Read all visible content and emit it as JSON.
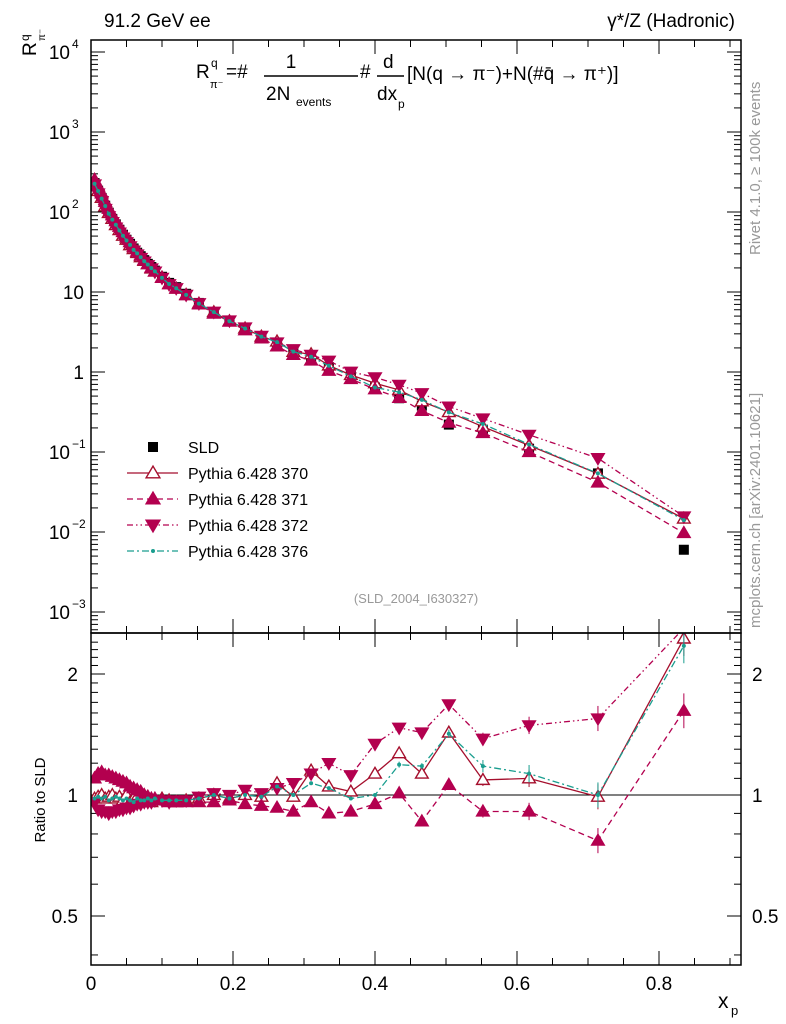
{
  "chart_data": {
    "type": "scatter",
    "title_left": "91.2 GeV ee",
    "title_right": "γ*/Z (Hadronic)",
    "ylabel_main": "R",
    "ylabel_sup": "q",
    "ylabel_sub": "π⁻",
    "formula": "R^q_π⁻=#1/(2N_events)#d/dx_p[N(q → π⁻)+N(#q̄ → π⁺)]",
    "formula_parts": {
      "lhs": "R",
      "sup": "q",
      "sub": "π⁻",
      "eq": "=#",
      "num1": "1",
      "den1": "2N",
      "den1_sub": "events",
      "hash": "#",
      "num2": "d",
      "den2": "dx",
      "den2_sub": "p",
      "bracket": "[N(q → π⁻)+N(#q̄ → π⁺)]"
    },
    "xlabel": "x",
    "xlabel_sub": "p",
    "ratio_ylabel": "Ratio to SLD",
    "analysis": "(SLD_2004_I630327)",
    "side_text_1": "Rivet 4.1.0, ≥ 100k events",
    "side_text_2": "mcplots.cern.ch [arXiv:2401.10621]",
    "xlim": [
      0,
      0.915
    ],
    "ylim_log10": [
      -3.26,
      4.15
    ],
    "ratio_ylim": [
      0.377,
      2.53
    ],
    "x_ticks": [
      "0",
      "0.2",
      "0.4",
      "0.6",
      "0.8"
    ],
    "x_tick_values": [
      0,
      0.2,
      0.4,
      0.6,
      0.8
    ],
    "y_ticks": [
      {
        "b": "10",
        "e": "−3",
        "v": -3
      },
      {
        "b": "10",
        "e": "−2",
        "v": -2
      },
      {
        "b": "10",
        "e": "−1",
        "v": -1
      },
      {
        "b": "1",
        "e": "",
        "v": 0
      },
      {
        "b": "10",
        "e": "",
        "v": 1
      },
      {
        "b": "10",
        "e": "2",
        "v": 2
      },
      {
        "b": "10",
        "e": "3",
        "v": 3
      },
      {
        "b": "10",
        "e": "4",
        "v": 4
      }
    ],
    "ratio_ticks": [
      {
        "l": "0.5",
        "v": 0.5
      },
      {
        "l": "1",
        "v": 1
      },
      {
        "l": "2",
        "v": 2
      }
    ],
    "x": [
      0.005,
      0.01,
      0.015,
      0.02,
      0.025,
      0.03,
      0.035,
      0.04,
      0.045,
      0.05,
      0.055,
      0.06,
      0.065,
      0.07,
      0.075,
      0.08,
      0.085,
      0.09,
      0.1,
      0.11,
      0.12,
      0.134,
      0.152,
      0.173,
      0.195,
      0.217,
      0.24,
      0.262,
      0.285,
      0.31,
      0.335,
      0.366,
      0.4,
      0.434,
      0.466,
      0.504,
      0.552,
      0.617,
      0.714,
      0.835
    ],
    "data": {
      "name": "SLD",
      "values": [
        230,
        185,
        150,
        120,
        98,
        82,
        70,
        60,
        52,
        45,
        40,
        35,
        31,
        28,
        25,
        22.5,
        20.5,
        18.5,
        15.5,
        13,
        11.5,
        9.5,
        7.3,
        5.6,
        4.4,
        3.5,
        2.8,
        2.25,
        1.8,
        1.45,
        1.15,
        0.9,
        0.64,
        0.47,
        0.38,
        0.22,
        0.19,
        0.11,
        0.054,
        0.006
      ]
    },
    "series": [
      {
        "name": "Pythia 6.428 370",
        "color": "#a50f2d",
        "marker": "open-triangle-up",
        "dash": "",
        "ratio": [
          0.98,
          0.99,
          1.0,
          0.98,
          0.99,
          1.0,
          0.98,
          0.99,
          0.97,
          1.0,
          0.96,
          0.98,
          0.99,
          0.97,
          0.98,
          0.99,
          0.96,
          0.97,
          0.98,
          0.97,
          0.96,
          0.97,
          0.98,
          1.0,
          0.98,
          1.0,
          0.99,
          1.07,
          0.99,
          1.15,
          1.05,
          1.02,
          1.13,
          1.27,
          1.13,
          1.43,
          1.09,
          1.1,
          0.99,
          2.45
        ]
      },
      {
        "name": "Pythia 6.428 371",
        "color": "#b3004f",
        "marker": "triangle-up",
        "dash": "6,4",
        "ratio": [
          1.1,
          1.13,
          1.14,
          1.12,
          1.12,
          1.11,
          1.1,
          1.09,
          1.08,
          1.07,
          1.05,
          1.04,
          1.03,
          1.02,
          1.0,
          0.99,
          0.98,
          0.98,
          0.97,
          0.96,
          0.96,
          0.96,
          0.96,
          0.96,
          0.97,
          0.95,
          0.94,
          0.93,
          0.91,
          0.96,
          0.9,
          0.91,
          0.95,
          1.01,
          0.86,
          1.06,
          0.91,
          0.91,
          0.77,
          1.62
        ]
      },
      {
        "name": "Pythia 6.428 372",
        "color": "#b3004f",
        "marker": "triangle-down",
        "dash": "6,3,1.5,3,1.5,3",
        "ratio": [
          0.96,
          0.92,
          0.91,
          0.91,
          0.9,
          0.91,
          0.91,
          0.92,
          0.92,
          0.93,
          0.93,
          0.94,
          0.95,
          0.95,
          0.96,
          0.96,
          0.96,
          0.97,
          0.97,
          0.96,
          0.97,
          0.97,
          0.99,
          1.01,
          1.0,
          1.03,
          1.01,
          1.04,
          1.07,
          1.13,
          1.2,
          1.12,
          1.34,
          1.47,
          1.43,
          1.68,
          1.38,
          1.49,
          1.55,
          2.6
        ]
      },
      {
        "name": "Pythia 6.428 376",
        "color": "#1a9e8f",
        "marker": "dot",
        "dash": "7,3,2,3",
        "ratio": [
          0.98,
          0.99,
          0.98,
          0.99,
          0.97,
          0.98,
          0.99,
          0.98,
          0.97,
          0.98,
          0.97,
          0.96,
          0.98,
          0.97,
          0.97,
          0.98,
          0.97,
          0.98,
          0.97,
          0.97,
          0.97,
          0.97,
          0.98,
          1.0,
          0.98,
          1.0,
          0.99,
          1.05,
          1.0,
          1.07,
          1.04,
          0.98,
          1.0,
          1.19,
          1.18,
          1.42,
          1.18,
          1.13,
          1.0,
          2.35
        ]
      }
    ]
  }
}
